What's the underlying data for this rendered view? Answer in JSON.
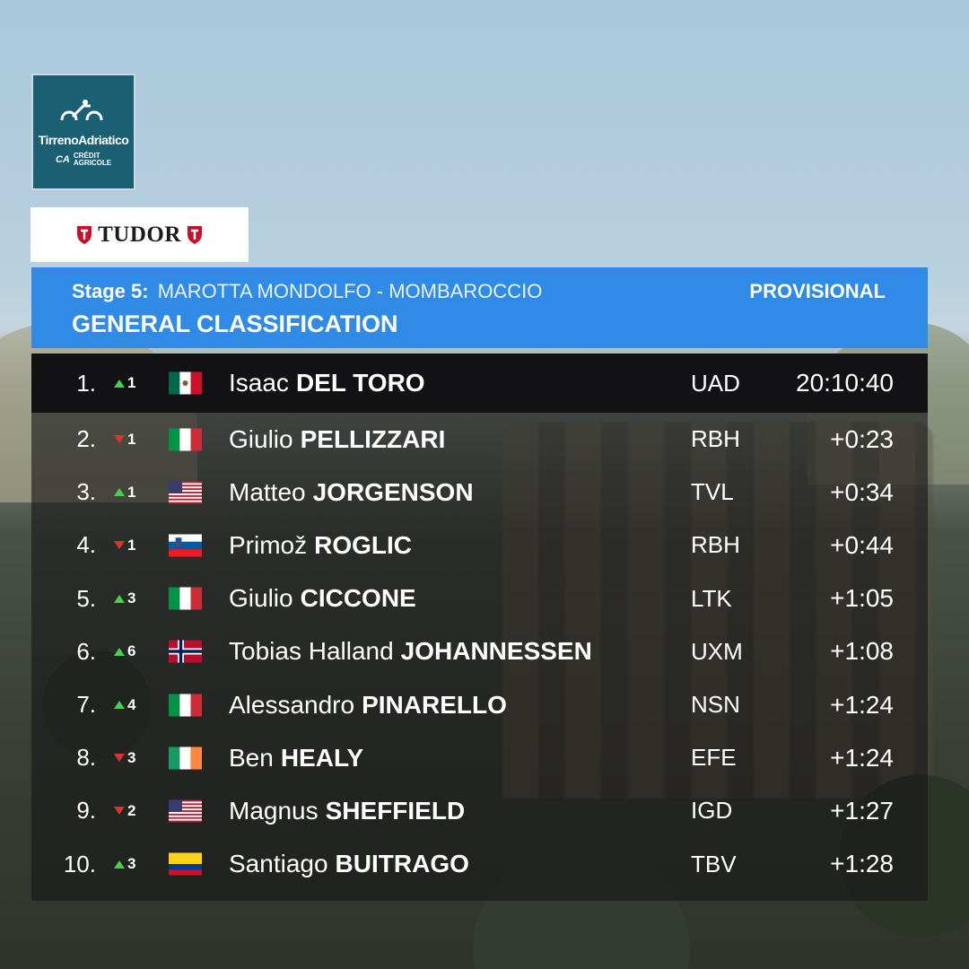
{
  "race_logo": {
    "name": "TirrenoAdriatico",
    "sponsor_line1": "CRÉDIT",
    "sponsor_line2": "AGRICOLE",
    "sponsor_mark": "CA"
  },
  "sponsor": {
    "name": "TUDOR"
  },
  "header": {
    "stage_label": "Stage 5:",
    "stage_route": "MAROTTA MONDOLFO - MOMBAROCCIO",
    "status": "PROVISIONAL",
    "title": "GENERAL CLASSIFICATION"
  },
  "colors": {
    "header_blue": "#2f8be6",
    "trend_up": "#47d14a",
    "trend_down": "#e03131"
  },
  "rows": [
    {
      "pos": "1.",
      "dir": "up",
      "change": "1",
      "flag": "mexico",
      "first": "Isaac",
      "last": "DEL TORO",
      "team": "UAD",
      "time": "20:10:40"
    },
    {
      "pos": "2.",
      "dir": "down",
      "change": "1",
      "flag": "italy",
      "first": "Giulio",
      "last": "PELLIZZARI",
      "team": "RBH",
      "time": "+0:23"
    },
    {
      "pos": "3.",
      "dir": "up",
      "change": "1",
      "flag": "usa",
      "first": "Matteo",
      "last": "JORGENSON",
      "team": "TVL",
      "time": "+0:34"
    },
    {
      "pos": "4.",
      "dir": "down",
      "change": "1",
      "flag": "slovenia",
      "first": "Primož",
      "last": "ROGLIC",
      "team": "RBH",
      "time": "+0:44"
    },
    {
      "pos": "5.",
      "dir": "up",
      "change": "3",
      "flag": "italy",
      "first": "Giulio",
      "last": "CICCONE",
      "team": "LTK",
      "time": "+1:05"
    },
    {
      "pos": "6.",
      "dir": "up",
      "change": "6",
      "flag": "norway",
      "first": "Tobias Halland",
      "last": "JOHANNESSEN",
      "team": "UXM",
      "time": "+1:08"
    },
    {
      "pos": "7.",
      "dir": "up",
      "change": "4",
      "flag": "italy",
      "first": "Alessandro",
      "last": "PINARELLO",
      "team": "NSN",
      "time": "+1:24"
    },
    {
      "pos": "8.",
      "dir": "down",
      "change": "3",
      "flag": "ireland",
      "first": "Ben",
      "last": "HEALY",
      "team": "EFE",
      "time": "+1:24"
    },
    {
      "pos": "9.",
      "dir": "down",
      "change": "2",
      "flag": "usa",
      "first": "Magnus",
      "last": "SHEFFIELD",
      "team": "IGD",
      "time": "+1:27"
    },
    {
      "pos": "10.",
      "dir": "up",
      "change": "3",
      "flag": "colombia",
      "first": "Santiago",
      "last": "BUITRAGO",
      "team": "TBV",
      "time": "+1:28"
    }
  ]
}
